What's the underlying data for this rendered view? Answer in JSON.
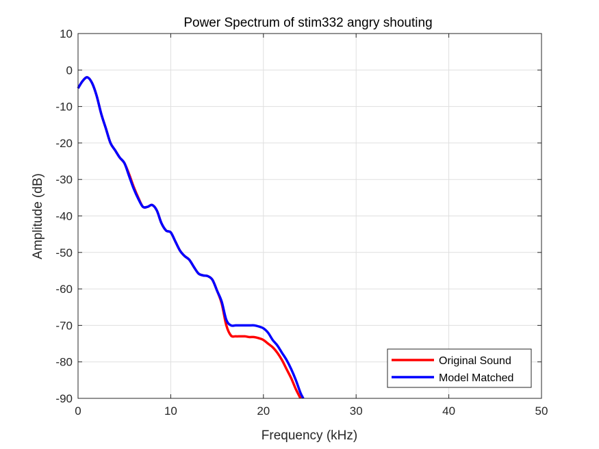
{
  "chart_data": {
    "type": "line",
    "title": "Power Spectrum of stim332 angry shouting",
    "xlabel": "Frequency (kHz)",
    "ylabel": "Amplitude (dB)",
    "xlim": [
      0,
      50
    ],
    "ylim": [
      -90,
      10
    ],
    "xticks": [
      0,
      10,
      20,
      30,
      40,
      50
    ],
    "yticks": [
      10,
      0,
      -10,
      -20,
      -30,
      -40,
      -50,
      -60,
      -70,
      -80,
      -90
    ],
    "grid": true,
    "legend_position": "bottom-right",
    "series": [
      {
        "name": "Original Sound",
        "color": "#ff0000",
        "x": [
          0,
          0.5,
          1,
          1.5,
          2,
          2.5,
          3,
          3.5,
          4,
          4.5,
          5,
          5.5,
          6,
          6.5,
          7,
          7.5,
          8,
          8.5,
          9,
          9.5,
          10,
          10.5,
          11,
          11.5,
          12,
          12.5,
          13,
          13.5,
          14,
          14.5,
          15,
          15.5,
          16,
          16.5,
          17,
          17.5,
          18,
          18.5,
          19,
          19.5,
          20,
          20.5,
          21,
          21.5,
          22,
          22.5,
          23,
          23.5,
          24
        ],
        "y": [
          -5,
          -3,
          -2,
          -3.5,
          -7,
          -12,
          -16,
          -20,
          -22,
          -24,
          -25.5,
          -28.5,
          -32,
          -35,
          -37.5,
          -37.5,
          -37,
          -38.5,
          -42,
          -44,
          -44.5,
          -47,
          -49.5,
          -51,
          -52,
          -54,
          -55.8,
          -56.3,
          -56.5,
          -57.5,
          -60.5,
          -64,
          -70,
          -72.8,
          -73,
          -73,
          -73,
          -73.2,
          -73.2,
          -73.5,
          -74,
          -75,
          -76,
          -77.5,
          -79.5,
          -82,
          -84.5,
          -87.5,
          -90
        ]
      },
      {
        "name": "Model Matched",
        "color": "#0000ff",
        "x": [
          0,
          0.5,
          1,
          1.5,
          2,
          2.5,
          3,
          3.5,
          4,
          4.5,
          5,
          5.5,
          6,
          6.5,
          7,
          7.5,
          8,
          8.5,
          9,
          9.5,
          10,
          10.5,
          11,
          11.5,
          12,
          12.5,
          13,
          13.5,
          14,
          14.5,
          15,
          15.5,
          16,
          16.5,
          17,
          17.5,
          18,
          18.5,
          19,
          19.5,
          20,
          20.5,
          21,
          21.5,
          22,
          22.5,
          23,
          23.5,
          24,
          24.3
        ],
        "y": [
          -5,
          -3,
          -2,
          -3.5,
          -7,
          -12,
          -16,
          -20,
          -22,
          -24,
          -25.5,
          -29,
          -32.5,
          -35.3,
          -37.5,
          -37.5,
          -37,
          -38.5,
          -42,
          -44,
          -44.5,
          -47,
          -49.5,
          -51,
          -52,
          -54,
          -55.8,
          -56.3,
          -56.5,
          -57.5,
          -60.5,
          -63.5,
          -68.5,
          -70,
          -70,
          -70,
          -70,
          -70,
          -70,
          -70.3,
          -70.8,
          -72,
          -74,
          -75.5,
          -77.5,
          -79.5,
          -82,
          -85,
          -88.5,
          -90
        ]
      }
    ]
  }
}
